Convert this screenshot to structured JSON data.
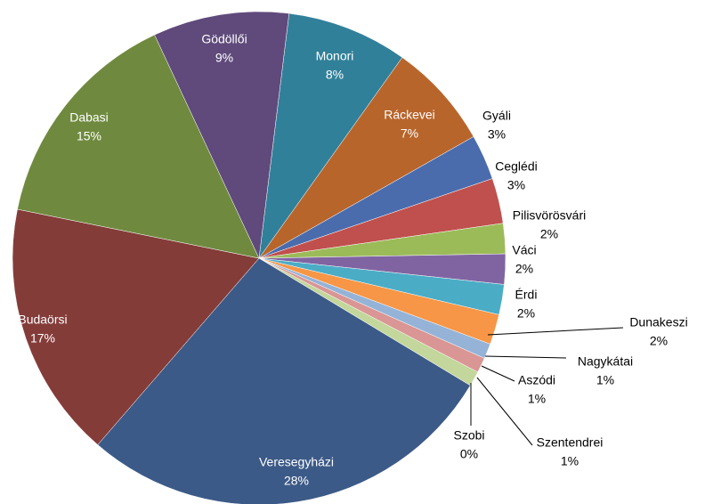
{
  "chart_data": {
    "type": "pie",
    "categories": [
      "Monori",
      "Ráckevei",
      "Gyáli",
      "Ceglédi",
      "Pilisvörösvári",
      "Váci",
      "Érdi",
      "Dunakeszi",
      "Nagykátai",
      "Aszódi",
      "Szentendrei",
      "Szobi",
      "Veresegyházi",
      "Budaörsi",
      "Dabasi",
      "Gödöllői"
    ],
    "values": [
      8,
      7,
      3,
      3,
      2,
      2,
      2,
      2,
      1,
      1,
      1,
      0,
      28,
      17,
      15,
      9
    ],
    "value_labels": [
      "8%",
      "7%",
      "3%",
      "3%",
      "2%",
      "2%",
      "2%",
      "2%",
      "1%",
      "1%",
      "1%",
      "0%",
      "28%",
      "17%",
      "15%",
      "9%"
    ],
    "colors": [
      "#31809a",
      "#b8652b",
      "#4a6cad",
      "#c0504d",
      "#9bbb59",
      "#8064a2",
      "#4bacc6",
      "#f79646",
      "#95b3d7",
      "#d99694",
      "#c3d69b",
      "#b3a2c7",
      "#3c5a87",
      "#843c39",
      "#6f8a3e",
      "#5f4a7b"
    ]
  }
}
